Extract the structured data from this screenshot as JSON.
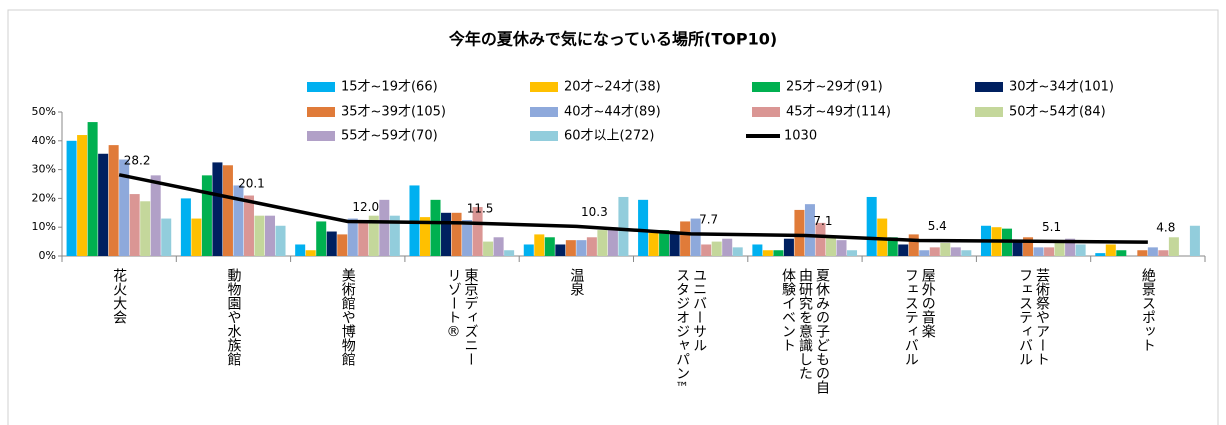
{
  "chart_data": {
    "type": "bar",
    "title": "今年の夏休みで気になっている場所(TOP10)",
    "categories": [
      [
        "花火大会"
      ],
      [
        "動物園や水族館"
      ],
      [
        "美術館や博物館"
      ],
      [
        "東京ディズニー",
        "リゾート®"
      ],
      [
        "温泉"
      ],
      [
        "ユニバーサル",
        "スタジオジャパン™"
      ],
      [
        "夏休みの子どもの自",
        "由研究を意識した",
        "体験イベント"
      ],
      [
        "屋外の音楽",
        "フェスティバル"
      ],
      [
        "芸術祭やアート",
        "フェスティバル"
      ],
      [
        "絶景スポット"
      ]
    ],
    "series": [
      {
        "name": "15才~19才(66)",
        "color": "#00b0f0",
        "values": [
          40,
          20,
          4,
          24.5,
          4,
          19.5,
          4,
          20.5,
          10.5,
          1
        ]
      },
      {
        "name": "20才~24才(38)",
        "color": "#ffc000",
        "values": [
          42,
          13,
          2,
          13.5,
          7.5,
          8,
          2,
          13,
          10,
          4
        ]
      },
      {
        "name": "25才~29才(91)",
        "color": "#00b050",
        "values": [
          46.5,
          28,
          12,
          19.5,
          6.5,
          9,
          2,
          6.5,
          9.5,
          2
        ]
      },
      {
        "name": "30才~34才(101)",
        "color": "#002060",
        "values": [
          35.5,
          32.5,
          8.5,
          15,
          4,
          8.5,
          6,
          4,
          5.5,
          0
        ]
      },
      {
        "name": "35才~39才(105)",
        "color": "#e07b39",
        "values": [
          38.5,
          31.5,
          7.5,
          15,
          5.5,
          12,
          16,
          7.5,
          6.5,
          2
        ]
      },
      {
        "name": "40才~44才(89)",
        "color": "#8ea9db",
        "values": [
          33.5,
          24.5,
          13,
          12.5,
          5.5,
          13,
          18,
          2,
          3,
          3
        ]
      },
      {
        "name": "45才~49才(114)",
        "color": "#da9694",
        "values": [
          21.5,
          21,
          12.5,
          17,
          6.5,
          4,
          11.5,
          3,
          3,
          2
        ]
      },
      {
        "name": "50才~54才(84)",
        "color": "#c4d79b",
        "values": [
          19,
          14,
          14,
          5,
          9,
          5,
          6.5,
          4.5,
          5,
          6.5
        ]
      },
      {
        "name": "55才~59才(70)",
        "color": "#b1a0c7",
        "values": [
          28,
          14,
          19.5,
          6.5,
          10,
          6,
          5.5,
          3,
          6,
          0
        ]
      },
      {
        "name": "60才以上(272)",
        "color": "#92cddc",
        "values": [
          13,
          10.5,
          14,
          2,
          20.5,
          3,
          2,
          2,
          4,
          10.5
        ]
      },
      {
        "name": "1030",
        "color": "#000000",
        "type": "line",
        "values": [
          28.2,
          20.1,
          12.0,
          11.5,
          10.3,
          7.7,
          7.1,
          5.4,
          5.1,
          4.8
        ],
        "value_labels": [
          "28.2",
          "20.1",
          "12.0",
          "11.5",
          "10.3",
          "7.7",
          "7.1",
          "5.4",
          "5.1",
          "4.8"
        ]
      }
    ],
    "ylim": [
      0,
      50
    ],
    "yticks": [
      {
        "value": 0,
        "label": "0%"
      },
      {
        "value": 10,
        "label": "10%"
      },
      {
        "value": 20,
        "label": "20%"
      },
      {
        "value": 30,
        "label": "30%"
      },
      {
        "value": 40,
        "label": "40%"
      },
      {
        "value": 50,
        "label": "50%"
      }
    ],
    "grid": false
  }
}
